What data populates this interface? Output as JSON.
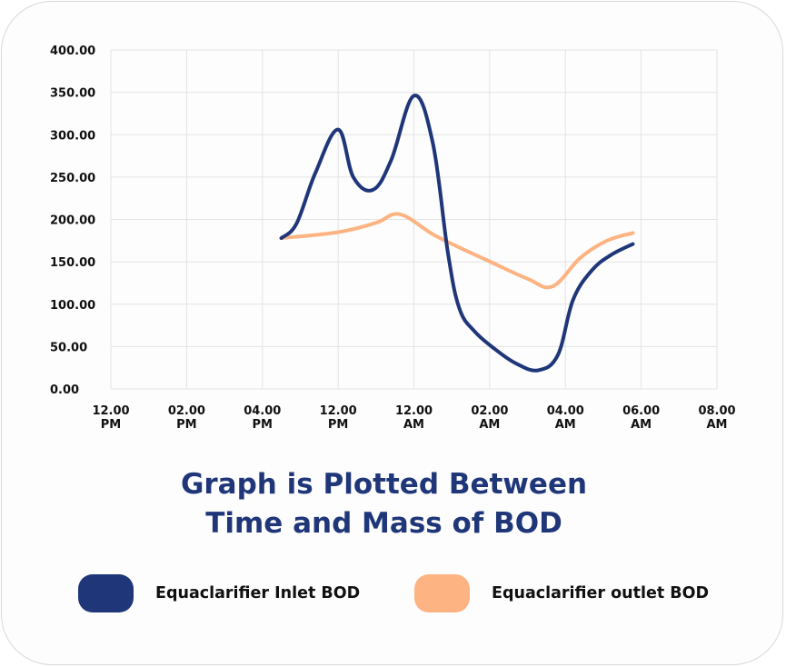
{
  "chart_data": {
    "type": "line",
    "title": "Graph is Plotted Between Time and Mass of BOD",
    "title_lines": [
      "Graph is Plotted Between",
      "Time and Mass of BOD"
    ],
    "xlabel": "",
    "ylabel": "",
    "categories": [
      [
        "12.00",
        "PM"
      ],
      [
        "02.00",
        "PM"
      ],
      [
        "04.00",
        "PM"
      ],
      [
        "12.00",
        "PM"
      ],
      [
        "12.00",
        "AM"
      ],
      [
        "02.00",
        "AM"
      ],
      [
        "04.00",
        "AM"
      ],
      [
        "06.00",
        "AM"
      ],
      [
        "08.00",
        "AM"
      ]
    ],
    "ylim": [
      0,
      400
    ],
    "yticks": [
      "0.00",
      "50.00",
      "100.00",
      "150.00",
      "200.00",
      "250.00",
      "300.00",
      "350.00",
      "400.00"
    ],
    "grid": true,
    "legend_position": "bottom",
    "series": [
      {
        "name": "Equaclarifier Inlet BOD",
        "color": "#1f3679",
        "points": [
          [
            2.25,
            178
          ],
          [
            2.45,
            195
          ],
          [
            2.7,
            255
          ],
          [
            3.0,
            306
          ],
          [
            3.2,
            250
          ],
          [
            3.46,
            235
          ],
          [
            3.7,
            270
          ],
          [
            4.0,
            346
          ],
          [
            4.25,
            290
          ],
          [
            4.45,
            160
          ],
          [
            4.6,
            95
          ],
          [
            4.8,
            68
          ],
          [
            5.07,
            47
          ],
          [
            5.35,
            30
          ],
          [
            5.64,
            22
          ],
          [
            5.9,
            40
          ],
          [
            6.1,
            105
          ],
          [
            6.35,
            140
          ],
          [
            6.6,
            158
          ],
          [
            6.89,
            171
          ]
        ]
      },
      {
        "name": "Equaclarifier outlet BOD",
        "color": "#fdb382",
        "points": [
          [
            2.25,
            178
          ],
          [
            3.0,
            185
          ],
          [
            3.5,
            196
          ],
          [
            3.82,
            206
          ],
          [
            4.3,
            180
          ],
          [
            5.01,
            150
          ],
          [
            5.5,
            130
          ],
          [
            5.83,
            121
          ],
          [
            6.2,
            155
          ],
          [
            6.55,
            175
          ],
          [
            6.89,
            184
          ]
        ]
      }
    ]
  },
  "legend": [
    {
      "label": "Equaclarifier Inlet BOD",
      "color": "#1f3679"
    },
    {
      "label": "Equaclarifier outlet BOD",
      "color": "#fdb382"
    }
  ]
}
